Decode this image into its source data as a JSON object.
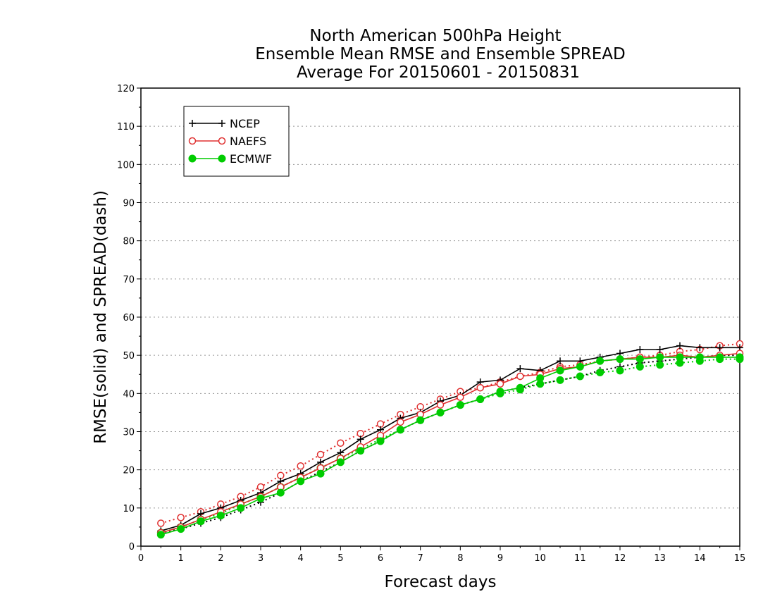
{
  "chart_data": {
    "type": "line",
    "title": [
      "North American 500hPa Height",
      "Ensemble Mean RMSE and Ensemble SPREAD",
      "Average For 20150601 - 20150831"
    ],
    "xlabel": "Forecast days",
    "ylabel": "RMSE(solid) and SPREAD(dash)",
    "xlim": [
      0,
      15
    ],
    "ylim": [
      0,
      120
    ],
    "xticks": [
      0,
      1,
      2,
      3,
      4,
      5,
      6,
      7,
      8,
      9,
      10,
      11,
      12,
      13,
      14,
      15
    ],
    "yticks": [
      0,
      10,
      20,
      30,
      40,
      50,
      60,
      70,
      80,
      90,
      100,
      110,
      120
    ],
    "grid": "horizontal dotted",
    "legend_position": "top-left",
    "x": [
      0.5,
      1,
      1.5,
      2,
      2.5,
      3,
      3.5,
      4,
      4.5,
      5,
      5.5,
      6,
      6.5,
      7,
      7.5,
      8,
      8.5,
      9,
      9.5,
      10,
      10.5,
      11,
      11.5,
      12,
      12.5,
      13,
      13.5,
      14,
      14.5,
      15
    ],
    "series": [
      {
        "name": "NCEP",
        "kind": "RMSE",
        "style": "solid",
        "marker": "plus",
        "color": "#000000",
        "values": [
          4,
          5.5,
          8.5,
          10,
          12,
          14,
          17,
          19,
          22,
          24.5,
          28,
          30.5,
          33.5,
          35,
          38,
          39.5,
          43,
          43.5,
          46.5,
          46,
          48.5,
          48.5,
          49.5,
          50.5,
          51.5,
          51.5,
          52.5,
          52,
          52,
          52
        ]
      },
      {
        "name": "NCEP",
        "kind": "SPREAD",
        "style": "dotted",
        "marker": "plus",
        "color": "#000000",
        "values": [
          3.5,
          4.5,
          6,
          7.5,
          9.5,
          11.5,
          14,
          17,
          19.5,
          22,
          25,
          27.5,
          30.5,
          33,
          35,
          37,
          38.5,
          40.5,
          41.5,
          42.5,
          43.5,
          44.5,
          46,
          47,
          48,
          48.5,
          49,
          49.5,
          50,
          50
        ]
      },
      {
        "name": "NAEFS",
        "kind": "RMSE",
        "style": "solid",
        "marker": "open-circle",
        "color": "#e03030",
        "values": [
          3.5,
          5,
          7,
          9,
          11,
          13,
          15.5,
          18,
          20.5,
          23,
          26,
          29,
          32.5,
          34.5,
          37,
          39,
          41.5,
          42.5,
          44.5,
          45,
          46.5,
          47,
          48.5,
          49,
          49.5,
          49.5,
          50,
          49.5,
          50,
          50.5
        ]
      },
      {
        "name": "NAEFS",
        "kind": "SPREAD",
        "style": "dotted",
        "marker": "open-circle",
        "color": "#e03030",
        "values": [
          6,
          7.5,
          9,
          11,
          13,
          15.5,
          18.5,
          21,
          24,
          27,
          29.5,
          32,
          34.5,
          36.5,
          38.5,
          40.5,
          41.5,
          43,
          44.5,
          45.5,
          47,
          47.5,
          48.5,
          49,
          49.5,
          50,
          51,
          51.5,
          52.5,
          53
        ]
      },
      {
        "name": "ECMWF",
        "kind": "RMSE",
        "style": "solid",
        "marker": "filled-circle",
        "color": "#00cc00",
        "values": [
          3,
          4.5,
          6.5,
          8,
          10,
          12.5,
          14,
          17,
          19,
          22,
          25,
          27.5,
          30.5,
          33,
          35,
          37,
          38.5,
          40.5,
          41.5,
          44,
          46,
          47,
          48.5,
          49,
          49,
          49.5,
          49.5,
          49.5,
          49.5,
          49.5
        ]
      },
      {
        "name": "ECMWF",
        "kind": "SPREAD",
        "style": "dotted",
        "marker": "filled-circle",
        "color": "#00cc00",
        "values": [
          3.5,
          5,
          7,
          8.5,
          11,
          13,
          15.5,
          18,
          20.5,
          23,
          25.5,
          28,
          30.5,
          33,
          35,
          37,
          38.5,
          40,
          41,
          42.5,
          43.5,
          44.5,
          45.5,
          46,
          47,
          47.5,
          48,
          48.5,
          49,
          49
        ]
      }
    ],
    "legend": [
      {
        "label": "NCEP",
        "marker": "plus",
        "color": "#000000"
      },
      {
        "label": "NAEFS",
        "marker": "open-circle",
        "color": "#e03030"
      },
      {
        "label": "ECMWF",
        "marker": "filled-circle",
        "color": "#00cc00"
      }
    ]
  }
}
